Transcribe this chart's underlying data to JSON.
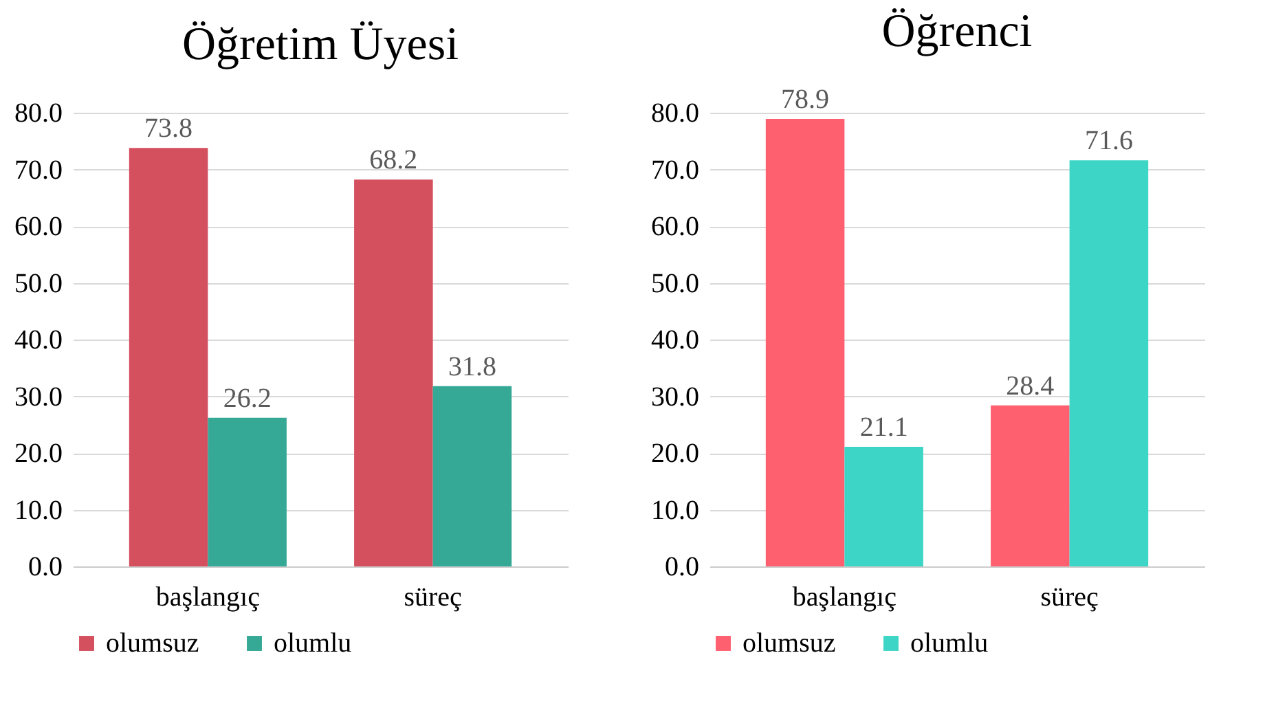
{
  "chart_data": [
    {
      "type": "bar",
      "title": "Öğretim Üyesi",
      "categories": [
        "başlangıç",
        "süreç"
      ],
      "series": [
        {
          "name": "olumsuz",
          "color": "#d4505e",
          "values": [
            73.8,
            68.2
          ]
        },
        {
          "name": "olumlu",
          "color": "#36a896",
          "values": [
            26.2,
            31.8
          ]
        }
      ],
      "ylim": [
        0,
        80
      ],
      "yticks": [
        {
          "value": 0,
          "label": "0.0"
        },
        {
          "value": 10,
          "label": "10.0"
        },
        {
          "value": 20,
          "label": "20.0"
        },
        {
          "value": 30,
          "label": "30.0"
        },
        {
          "value": 40,
          "label": "40.0"
        },
        {
          "value": 50,
          "label": "50.0"
        },
        {
          "value": 60,
          "label": "60.0"
        },
        {
          "value": 70,
          "label": "70.0"
        },
        {
          "value": 80,
          "label": "80.0"
        }
      ],
      "grid": "y",
      "legend": "bottom",
      "data_labels": true
    },
    {
      "type": "bar",
      "title": "Öğrenci",
      "categories": [
        "başlangıç",
        "süreç"
      ],
      "series": [
        {
          "name": "olumsuz",
          "color": "#ff6070",
          "values": [
            78.9,
            28.4
          ]
        },
        {
          "name": "olumlu",
          "color": "#3dd6c6",
          "values": [
            21.1,
            71.6
          ]
        }
      ],
      "ylim": [
        0,
        80
      ],
      "yticks": [
        {
          "value": 0,
          "label": "0.0"
        },
        {
          "value": 10,
          "label": "10.0"
        },
        {
          "value": 20,
          "label": "20.0"
        },
        {
          "value": 30,
          "label": "30.0"
        },
        {
          "value": 40,
          "label": "40.0"
        },
        {
          "value": 50,
          "label": "50.0"
        },
        {
          "value": 60,
          "label": "60.0"
        },
        {
          "value": 70,
          "label": "70.0"
        },
        {
          "value": 80,
          "label": "80.0"
        }
      ],
      "grid": "y",
      "legend": "bottom",
      "data_labels": true
    }
  ]
}
